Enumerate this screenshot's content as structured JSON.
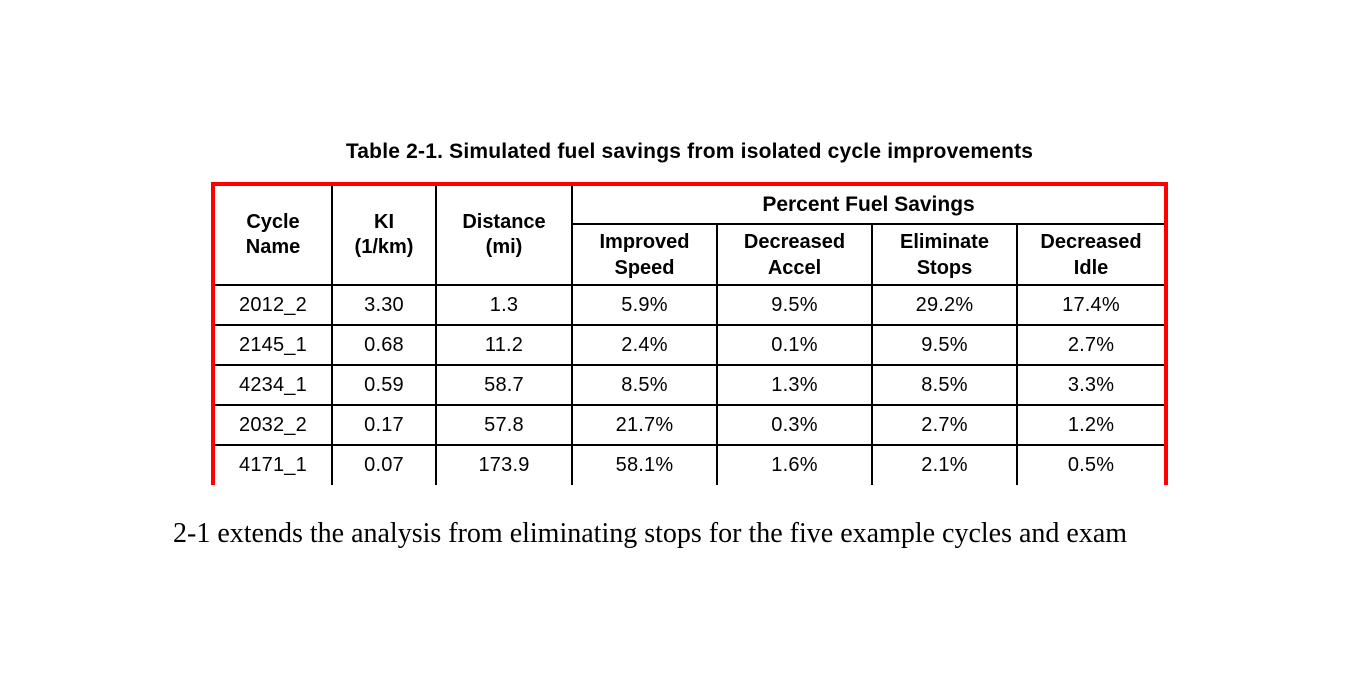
{
  "title": "Table 2-1. Simulated fuel savings from isolated cycle improvements",
  "table": {
    "border_color": "#ff0000",
    "header": {
      "cycle_name": "Cycle\nName",
      "ki": "KI\n(1/km)",
      "distance": "Distance\n(mi)",
      "group": "Percent Fuel Savings",
      "sub": [
        "Improved\nSpeed",
        "Decreased\nAccel",
        "Eliminate\nStops",
        "Decreased\nIdle"
      ]
    },
    "rows": [
      [
        "2012_2",
        "3.30",
        "1.3",
        "5.9%",
        "9.5%",
        "29.2%",
        "17.4%"
      ],
      [
        "2145_1",
        "0.68",
        "11.2",
        "2.4%",
        "0.1%",
        "9.5%",
        "2.7%"
      ],
      [
        "4234_1",
        "0.59",
        "58.7",
        "8.5%",
        "1.3%",
        "8.5%",
        "3.3%"
      ],
      [
        "2032_2",
        "0.17",
        "57.8",
        "21.7%",
        "0.3%",
        "2.7%",
        "1.2%"
      ],
      [
        "4171_1",
        "0.07",
        "173.9",
        "58.1%",
        "1.6%",
        "2.1%",
        "0.5%"
      ]
    ]
  },
  "body_text": "2-1 extends the analysis from eliminating stops for the five example cycles and exam",
  "chart_data": {
    "type": "table",
    "title": "Table 2-1. Simulated fuel savings from isolated cycle improvements",
    "columns": [
      "Cycle Name",
      "KI (1/km)",
      "Distance (mi)",
      "Improved Speed",
      "Decreased Accel",
      "Eliminate Stops",
      "Decreased Idle"
    ],
    "column_group": {
      "label": "Percent Fuel Savings",
      "covers": [
        "Improved Speed",
        "Decreased Accel",
        "Eliminate Stops",
        "Decreased Idle"
      ]
    },
    "rows": [
      [
        "2012_2",
        3.3,
        1.3,
        "5.9%",
        "9.5%",
        "29.2%",
        "17.4%"
      ],
      [
        "2145_1",
        0.68,
        11.2,
        "2.4%",
        "0.1%",
        "9.5%",
        "2.7%"
      ],
      [
        "4234_1",
        0.59,
        58.7,
        "8.5%",
        "1.3%",
        "8.5%",
        "3.3%"
      ],
      [
        "2032_2",
        0.17,
        57.8,
        "21.7%",
        "0.3%",
        "2.7%",
        "1.2%"
      ],
      [
        "4171_1",
        0.07,
        173.9,
        "58.1%",
        "1.6%",
        "2.1%",
        "0.5%"
      ]
    ]
  }
}
